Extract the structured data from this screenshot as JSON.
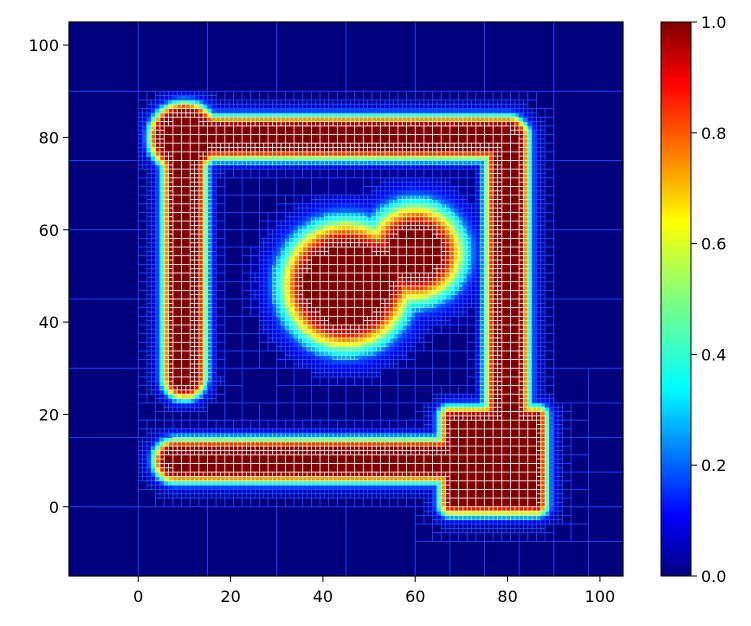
{
  "chart_data": {
    "type": "heatmap",
    "title": "",
    "xlabel": "",
    "ylabel": "",
    "xlim": [
      -15,
      105
    ],
    "ylim": [
      -15,
      105
    ],
    "xticks": [
      0,
      20,
      40,
      60,
      80,
      100
    ],
    "yticks": [
      0,
      20,
      40,
      60,
      80,
      100
    ],
    "colormap": "jet",
    "colorbar": {
      "min": 0.0,
      "max": 1.0,
      "ticks": [
        "0.0",
        "0.2",
        "0.4",
        "0.6",
        "0.8",
        "1.0"
      ]
    },
    "mesh": "adaptive quadtree grid, finest cells along high-value regions",
    "features": [
      {
        "kind": "segment",
        "from": [
          10,
          80
        ],
        "to": [
          80,
          80
        ],
        "value": 1.0,
        "halfwidth": 2.5
      },
      {
        "kind": "segment",
        "from": [
          10,
          80
        ],
        "to": [
          10,
          28
        ],
        "value": 1.0,
        "halfwidth": 2.5
      },
      {
        "kind": "segment",
        "from": [
          80,
          80
        ],
        "to": [
          80,
          20
        ],
        "value": 1.0,
        "halfwidth": 2.5
      },
      {
        "kind": "segment",
        "from": [
          8,
          10
        ],
        "to": [
          70,
          10
        ],
        "value": 1.0,
        "halfwidth": 2.5
      },
      {
        "kind": "disk",
        "center": [
          10,
          80
        ],
        "radius": 5.5,
        "value": 1.0
      },
      {
        "kind": "square",
        "center": [
          77,
          10
        ],
        "halfsize": 9.5,
        "value": 1.0
      },
      {
        "kind": "blob",
        "center": [
          45,
          48
        ],
        "radius": 8.5,
        "value": 1.0
      },
      {
        "kind": "blob",
        "center": [
          50,
          50
        ],
        "radius": 5,
        "value": 1.0
      },
      {
        "kind": "blob",
        "center": [
          60,
          55
        ],
        "radius": 5,
        "value": 1.0
      }
    ]
  },
  "colors": {
    "background": "#00007f",
    "mesh_line": "#2050ff",
    "jet": [
      "#00007f",
      "#0000ff",
      "#007fff",
      "#00ffff",
      "#7fff7f",
      "#ffff00",
      "#ff7f00",
      "#ff0000",
      "#7f0000"
    ]
  }
}
